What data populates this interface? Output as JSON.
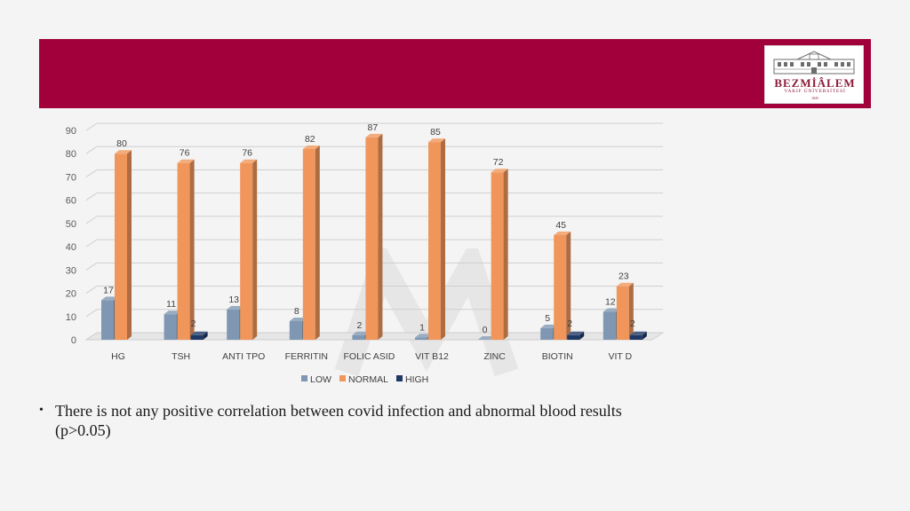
{
  "slide": {
    "banner_color": "#a2003a",
    "logo": {
      "name": "BEZMİÂLEM",
      "subtitle": "VAKIF ÜNİVERSİTESİ",
      "year": "1845"
    },
    "bullet": "There is not any positive correlation between covid infection and abnormal blood results (p>0.05)"
  },
  "chart_data": {
    "type": "bar",
    "title": "",
    "xlabel": "",
    "ylabel": "",
    "ylim": [
      0,
      90
    ],
    "yticks": [
      0,
      10,
      20,
      30,
      40,
      50,
      60,
      70,
      80,
      90
    ],
    "grid": true,
    "legend_position": "bottom",
    "categories": [
      "HG",
      "TSH",
      "ANTI TPO",
      "FERRITIN",
      "FOLIC ASID",
      "VIT B12",
      "ZINC",
      "BIOTIN",
      "VIT D"
    ],
    "series": [
      {
        "name": "LOW",
        "color": "#7f97b2",
        "values": [
          17,
          11,
          13,
          8,
          2,
          1,
          0,
          5,
          12
        ],
        "labels": [
          "17",
          "11",
          "13",
          "8",
          "2",
          "1",
          "0",
          "5",
          "12"
        ]
      },
      {
        "name": "NORMAL",
        "color": "#f0965a",
        "values": [
          80,
          76,
          76,
          82,
          87,
          85,
          72,
          45,
          23
        ],
        "labels": [
          "80",
          "76",
          "76",
          "82",
          "87",
          "85",
          "72",
          "45",
          "23"
        ]
      },
      {
        "name": "HIGH",
        "color": "#1f3864",
        "values": [
          0,
          2,
          0,
          0,
          0,
          0,
          0,
          2,
          2
        ],
        "labels": [
          "",
          "2",
          "",
          "",
          "",
          "",
          "",
          "2",
          "2"
        ]
      }
    ]
  }
}
